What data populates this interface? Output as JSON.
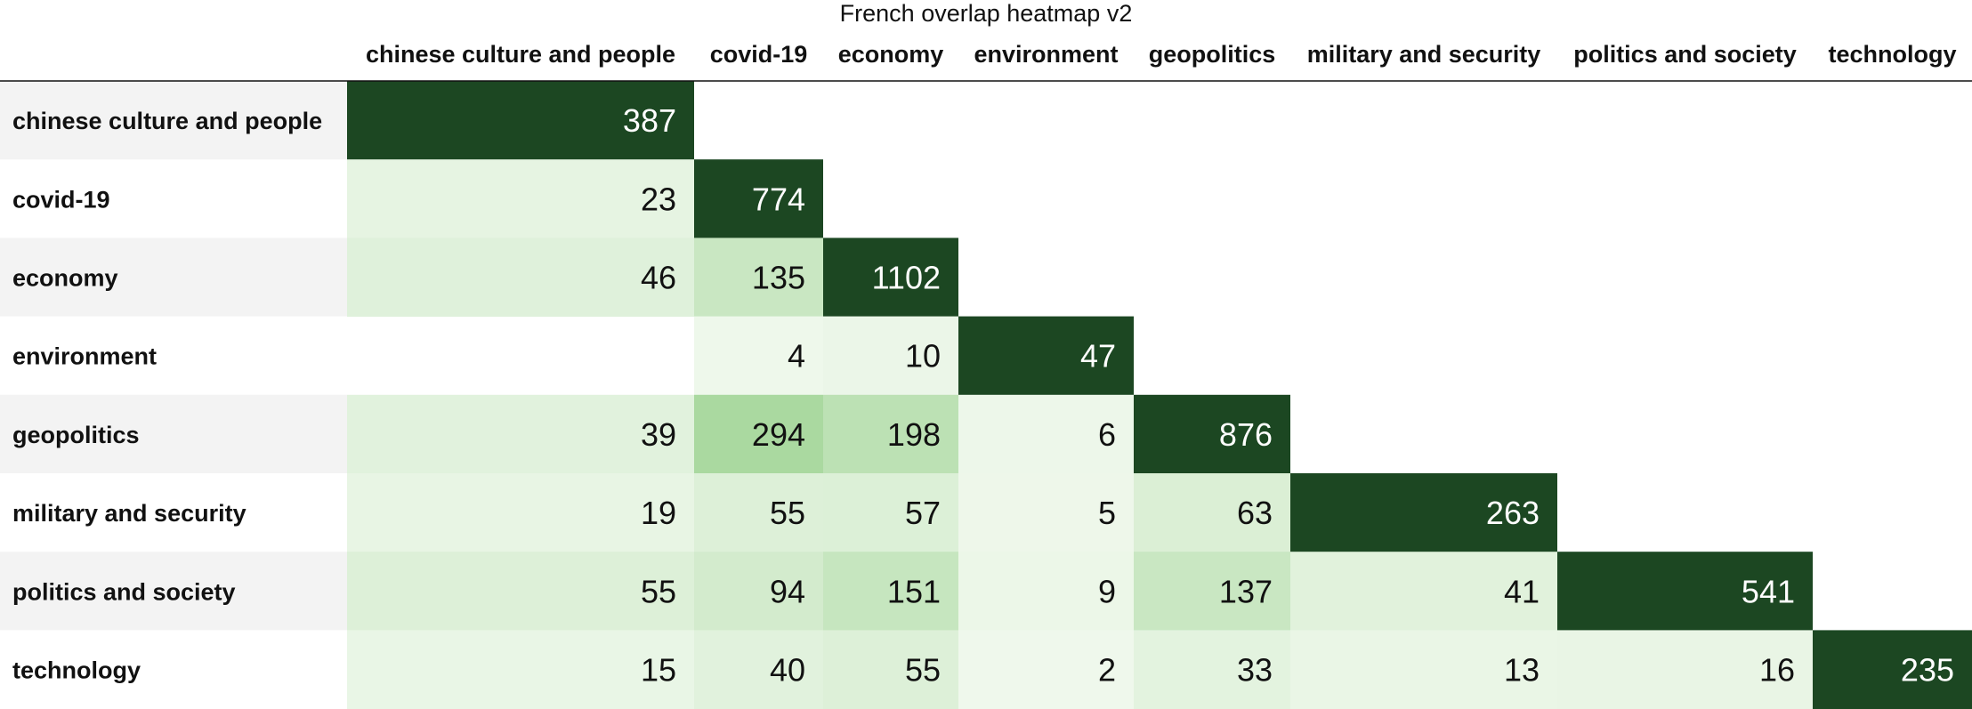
{
  "chart_data": {
    "type": "heatmap",
    "title": "French overlap heatmap v2",
    "columns": [
      "chinese culture and people",
      "covid-19",
      "economy",
      "environment",
      "geopolitics",
      "military and security",
      "politics and society",
      "technology"
    ],
    "rows": [
      "chinese culture and people",
      "covid-19",
      "economy",
      "environment",
      "geopolitics",
      "military and security",
      "politics and society",
      "technology"
    ],
    "values": [
      [
        387,
        null,
        null,
        null,
        null,
        null,
        null,
        null
      ],
      [
        23,
        774,
        null,
        null,
        null,
        null,
        null,
        null
      ],
      [
        46,
        135,
        1102,
        null,
        null,
        null,
        null,
        null
      ],
      [
        null,
        4,
        10,
        47,
        null,
        null,
        null,
        null
      ],
      [
        39,
        294,
        198,
        6,
        876,
        null,
        null,
        null
      ],
      [
        19,
        55,
        57,
        5,
        63,
        263,
        null,
        null
      ],
      [
        55,
        94,
        151,
        9,
        137,
        41,
        541,
        null
      ],
      [
        15,
        40,
        55,
        2,
        33,
        13,
        16,
        235
      ]
    ],
    "colors": {
      "diagonal": "#1c4722",
      "diagonal_text": "#ffffff",
      "offdiag_low": "#f1f9ee",
      "offdiag_high": "#aad9a0",
      "text": "#111111",
      "row_band": "#f3f3f3"
    }
  }
}
